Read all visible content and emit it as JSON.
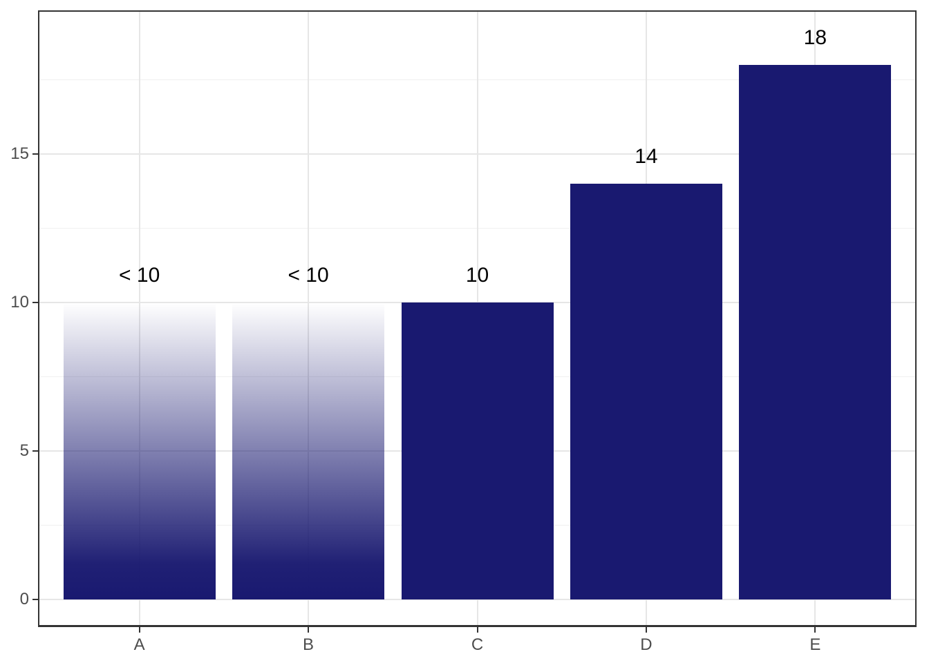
{
  "chart_data": {
    "type": "bar",
    "categories": [
      "A",
      "B",
      "C",
      "D",
      "E"
    ],
    "values": [
      10,
      10,
      10,
      14,
      18
    ],
    "bar_labels": [
      "< 10",
      "< 10",
      "10",
      "14",
      "18"
    ],
    "bar_styles": [
      "gradient-fade-top",
      "gradient-fade-top",
      "solid",
      "solid",
      "solid"
    ],
    "title": "",
    "xlabel": "",
    "ylabel": "",
    "yticks": [
      0,
      5,
      10,
      15
    ],
    "ytick_labels": [
      "0",
      "5",
      "10",
      "15"
    ],
    "yticks_minor": [
      2.5,
      7.5,
      12.5,
      17.5
    ],
    "ylim": [
      0,
      19.8
    ],
    "grid": "on",
    "legend": "none",
    "bar_color": "#191970",
    "gradient_note": "bars A and B fade from navy at base to white/transparent at top, indicating values below 10"
  },
  "colors": {
    "bar": "#191970",
    "panel_border": "#333333",
    "grid_major": "#e6e6e6",
    "grid_minor": "#f0f0f0",
    "axis_text": "#4d4d4d",
    "value_label_text": "#000000",
    "background": "#ffffff"
  }
}
